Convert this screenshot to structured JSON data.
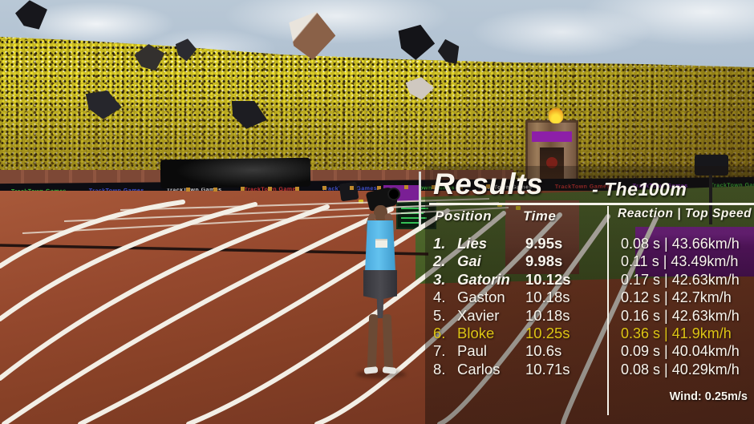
{
  "results_panel": {
    "title": "Results",
    "subtitle": "- The100m",
    "columns": {
      "position": "Position",
      "time": "Time",
      "reaction_top_speed": "Reaction | Top Speed"
    },
    "separator": "|",
    "rows": [
      {
        "position": "1.",
        "name": "Lies",
        "time": "9.95s",
        "reaction": "0.08 s",
        "top_speed": "43.66km/h",
        "style": "podium"
      },
      {
        "position": "2.",
        "name": "Gai",
        "time": "9.98s",
        "reaction": "0.11 s",
        "top_speed": "43.49km/h",
        "style": "podium"
      },
      {
        "position": "3.",
        "name": "Gatorin",
        "time": "10.12s",
        "reaction": "0.17 s",
        "top_speed": "42.63km/h",
        "style": "podium"
      },
      {
        "position": "4.",
        "name": "Gaston",
        "time": "10.18s",
        "reaction": "0.12 s",
        "top_speed": "42.7km/h",
        "style": "normal"
      },
      {
        "position": "5.",
        "name": "Xavier",
        "time": "10.18s",
        "reaction": "0.16 s",
        "top_speed": "42.63km/h",
        "style": "normal"
      },
      {
        "position": "6.",
        "name": "Bloke",
        "time": "10.25s",
        "reaction": "0.36 s",
        "top_speed": "41.9km/h",
        "style": "player"
      },
      {
        "position": "7.",
        "name": "Paul",
        "time": "10.6s",
        "reaction": "0.09 s",
        "top_speed": "40.04km/h",
        "style": "normal"
      },
      {
        "position": "8.",
        "name": "Carlos",
        "time": "10.71s",
        "reaction": "0.08 s",
        "top_speed": "40.29km/h",
        "style": "normal"
      }
    ],
    "wind": "Wind: 0.25m/s",
    "colors": {
      "player_highlight": "#ddc414",
      "row_text": "#f8f4ec",
      "panel_tint": "rgba(20,14,9,0.4)"
    }
  },
  "adboard": {
    "brand": "TrackTown Games",
    "repeat": 12,
    "colors": [
      "#3fd13f",
      "#4a5ae8",
      "#e8e8e8",
      "#e03535",
      "#4a5ae8",
      "#3fd13f",
      "#e8e8e8",
      "#e03535",
      "#9b30d8",
      "#3fd13f",
      "#e8e8e8",
      "#e03535"
    ]
  }
}
